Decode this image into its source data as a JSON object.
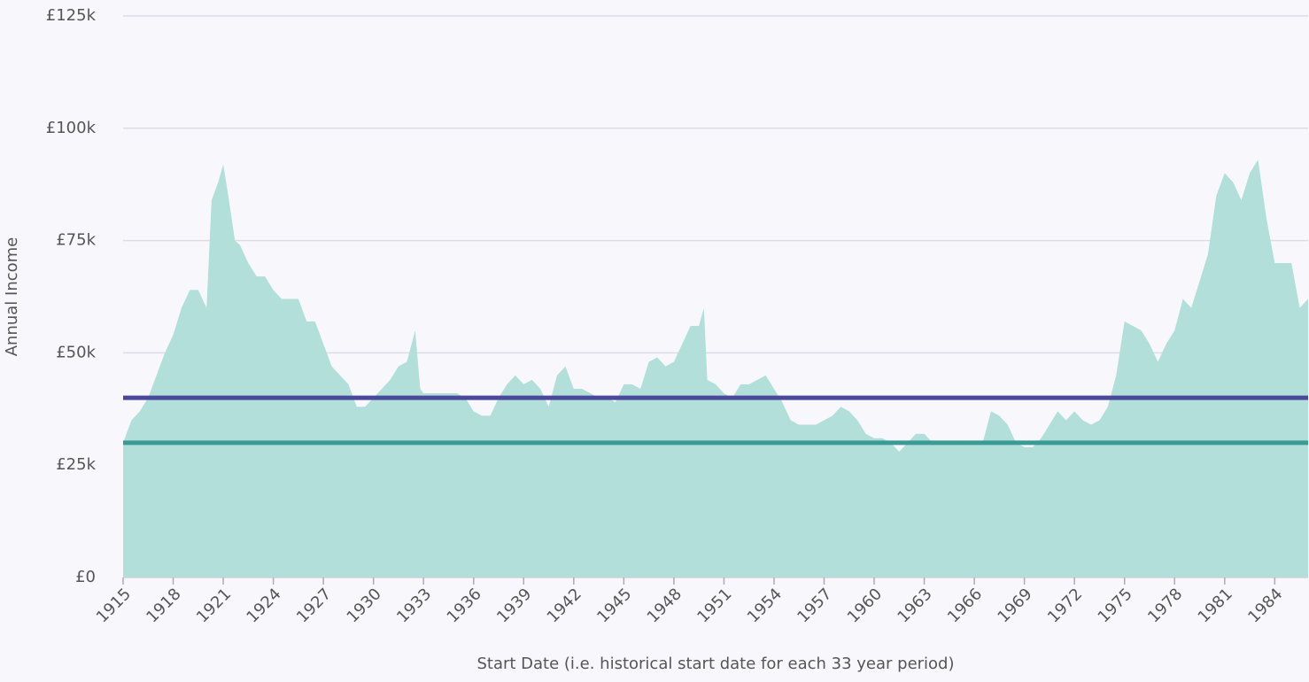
{
  "chart_data": {
    "type": "area",
    "xlabel": "Start Date (i.e. historical start date for each 33 year period)",
    "ylabel": "Annual Income",
    "x": [
      1915,
      1915.5,
      1916,
      1916.5,
      1917,
      1917.5,
      1918,
      1918.5,
      1919,
      1919.5,
      1920,
      1920.3,
      1920.7,
      1921,
      1921.3,
      1921.7,
      1922,
      1922.5,
      1923,
      1923.5,
      1924,
      1924.5,
      1925,
      1925.5,
      1926,
      1926.5,
      1927,
      1927.5,
      1928,
      1928.5,
      1929,
      1929.5,
      1930,
      1930.5,
      1931,
      1931.5,
      1932,
      1932.5,
      1932.8,
      1933,
      1934,
      1935,
      1935.5,
      1936,
      1936.5,
      1937,
      1937.5,
      1938,
      1938.5,
      1939,
      1939.5,
      1940,
      1940.5,
      1941,
      1941.5,
      1942,
      1942.5,
      1943,
      1943.5,
      1944,
      1944.5,
      1945,
      1945.5,
      1946,
      1946.5,
      1947,
      1947.5,
      1948,
      1948.5,
      1949,
      1949.5,
      1949.8,
      1950,
      1950.5,
      1951,
      1951.5,
      1952,
      1952.5,
      1953,
      1953.5,
      1954,
      1954.5,
      1955,
      1955.5,
      1956,
      1956.5,
      1957,
      1957.5,
      1958,
      1958.5,
      1959,
      1959.5,
      1960,
      1960.5,
      1961,
      1961.5,
      1962,
      1962.5,
      1963,
      1963.5,
      1964,
      1965,
      1966,
      1966.5,
      1967,
      1967.5,
      1968,
      1968.5,
      1969,
      1969.5,
      1970,
      1970.5,
      1971,
      1971.5,
      1972,
      1972.5,
      1973,
      1973.5,
      1974,
      1974.5,
      1975,
      1975.5,
      1976,
      1976.5,
      1977,
      1977.5,
      1978,
      1978.5,
      1979,
      1979.5,
      1980,
      1980.5,
      1981,
      1981.5,
      1982,
      1982.5,
      1983,
      1983.5,
      1984,
      1984.5,
      1985,
      1985.5,
      1986
    ],
    "series": [
      {
        "color": "#b2dfd9",
        "values": [
          30000,
          35000,
          37000,
          40000,
          45000,
          50000,
          54000,
          60000,
          64000,
          64000,
          60000,
          84000,
          88000,
          92000,
          85000,
          75000,
          74000,
          70000,
          67000,
          67000,
          64000,
          62000,
          62000,
          62000,
          57000,
          57000,
          52000,
          47000,
          45000,
          43000,
          38000,
          38000,
          40000,
          42000,
          44000,
          47000,
          48000,
          55000,
          42000,
          41000,
          41000,
          41000,
          40000,
          37000,
          36000,
          36000,
          40000,
          43000,
          45000,
          43000,
          44000,
          42000,
          38000,
          45000,
          47000,
          42000,
          42000,
          41000,
          40000,
          40000,
          39000,
          43000,
          43000,
          42000,
          48000,
          49000,
          47000,
          48000,
          52000,
          56000,
          56000,
          60000,
          44000,
          43000,
          41000,
          40000,
          43000,
          43000,
          44000,
          45000,
          42000,
          39000,
          35000,
          34000,
          34000,
          34000,
          35000,
          36000,
          38000,
          37000,
          35000,
          32000,
          31000,
          31000,
          30000,
          28000,
          30000,
          32000,
          32000,
          30000,
          30000,
          29500,
          30000,
          30000,
          37000,
          36000,
          34000,
          30000,
          29000,
          29000,
          31000,
          34000,
          37000,
          35000,
          37000,
          35000,
          34000,
          35000,
          38000,
          45000,
          57000,
          56000,
          55000,
          52000,
          48000,
          52000,
          55000,
          62000,
          60000,
          66000,
          72000,
          85000,
          90000,
          88000,
          84000,
          90000,
          93000,
          80000,
          70000,
          70000,
          70000,
          60000,
          62000
        ]
      }
    ],
    "reference_lines": [
      {
        "value": 40000,
        "color": "#4b4a9a"
      },
      {
        "value": 30000,
        "color": "#3a9a94"
      }
    ],
    "xlim": [
      1915,
      1986
    ],
    "xticks": [
      1915,
      1918,
      1921,
      1924,
      1927,
      1930,
      1933,
      1936,
      1939,
      1942,
      1945,
      1948,
      1951,
      1954,
      1957,
      1960,
      1963,
      1966,
      1969,
      1972,
      1975,
      1978,
      1981,
      1984
    ],
    "ylim": [
      0,
      125000
    ],
    "yticks": [
      {
        "value": 0,
        "label": "£0"
      },
      {
        "value": 25000,
        "label": "£25k"
      },
      {
        "value": 50000,
        "label": "£50k"
      },
      {
        "value": 75000,
        "label": "£75k"
      },
      {
        "value": 100000,
        "label": "£100k"
      },
      {
        "value": 125000,
        "label": "£125k"
      }
    ],
    "grid": true
  }
}
